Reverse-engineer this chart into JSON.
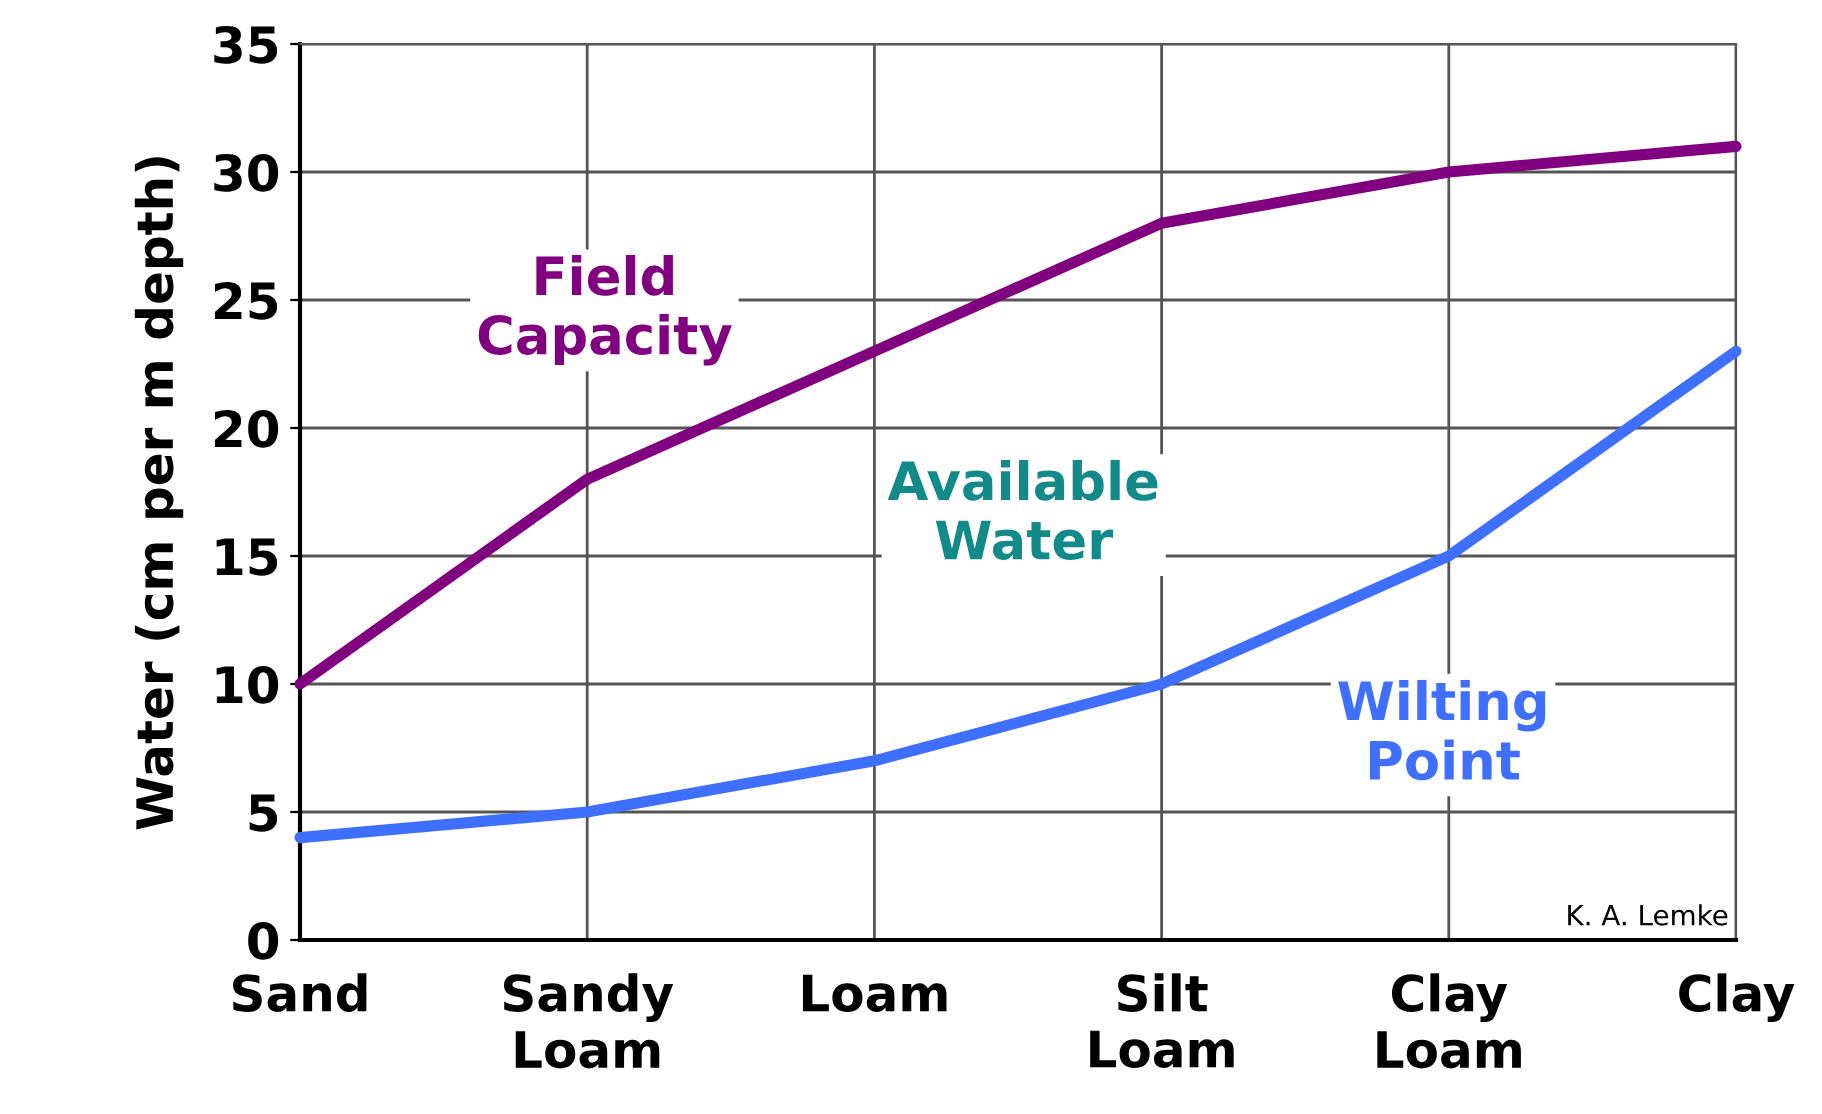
{
  "chart_data": {
    "type": "line",
    "ylabel": "Water (cm per m depth)",
    "categories": [
      "Sand",
      "Sandy\nLoam",
      "Loam",
      "Silt\nLoam",
      "Clay\nLoam",
      "Clay"
    ],
    "series": [
      {
        "name": "Field\nCapacity",
        "color": "#800080",
        "values": [
          10,
          18,
          23,
          28,
          30,
          31
        ]
      },
      {
        "name": "Wilting\nPoint",
        "color": "#3f6fff",
        "values": [
          4,
          5,
          7,
          10,
          15,
          23
        ]
      }
    ],
    "ylim": [
      0,
      35
    ],
    "yticks": [
      0,
      5,
      10,
      15,
      20,
      25,
      30,
      35
    ],
    "grid": true,
    "legend": false,
    "marker": "none",
    "line_style": "solid",
    "annotations": [
      "Available\nWater",
      "K. A. Lemke"
    ]
  }
}
